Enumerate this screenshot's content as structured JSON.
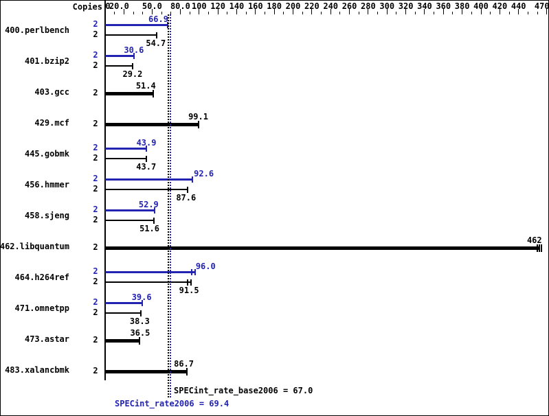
{
  "chart_data": {
    "type": "bar",
    "orientation": "horizontal",
    "title": "",
    "copies_header": "Copies",
    "colors": {
      "peak": "#2323b2",
      "base": "#000000",
      "background": "#ffffff"
    },
    "axis": {
      "min": 0,
      "max": 470,
      "minor_tick_step": 10,
      "major_tick_labels": [
        {
          "value": 0,
          "text": "0",
          "dx": 4
        },
        {
          "value": 20,
          "text": "20.0",
          "dx": -7
        },
        {
          "value": 50,
          "text": "50.0"
        },
        {
          "value": 80,
          "text": "80.0"
        },
        {
          "value": 100,
          "text": "100"
        },
        {
          "value": 120,
          "text": "120"
        },
        {
          "value": 140,
          "text": "140"
        },
        {
          "value": 160,
          "text": "160"
        },
        {
          "value": 180,
          "text": "180"
        },
        {
          "value": 200,
          "text": "200"
        },
        {
          "value": 220,
          "text": "220"
        },
        {
          "value": 240,
          "text": "240"
        },
        {
          "value": 260,
          "text": "260"
        },
        {
          "value": 280,
          "text": "280"
        },
        {
          "value": 300,
          "text": "300"
        },
        {
          "value": 320,
          "text": "320"
        },
        {
          "value": 340,
          "text": "340"
        },
        {
          "value": 360,
          "text": "360"
        },
        {
          "value": 380,
          "text": "380"
        },
        {
          "value": 400,
          "text": "400"
        },
        {
          "value": 420,
          "text": "420"
        },
        {
          "value": 440,
          "text": "440"
        },
        {
          "value": 470,
          "text": "470",
          "dx": -7
        }
      ]
    },
    "benchmarks": [
      {
        "name": "400.perlbench",
        "bars": [
          {
            "kind": "peak",
            "copies": "2",
            "value": 66.9,
            "label": "66.9",
            "label_dx": -14
          },
          {
            "kind": "base",
            "copies": "2",
            "value": 54.7,
            "label": "54.7",
            "label_dx": -1
          }
        ]
      },
      {
        "name": "401.bzip2",
        "bars": [
          {
            "kind": "peak",
            "copies": "2",
            "value": 30.6,
            "label": "30.6"
          },
          {
            "kind": "base",
            "copies": "2",
            "value": 29.2,
            "label": "29.2"
          }
        ]
      },
      {
        "name": "403.gcc",
        "bars": [
          {
            "kind": "single",
            "copies": "2",
            "value": 51.4,
            "label": "51.4",
            "label_dx": -11
          }
        ]
      },
      {
        "name": "429.mcf",
        "bars": [
          {
            "kind": "single",
            "copies": "2",
            "value": 99.1,
            "label": "99.1"
          }
        ]
      },
      {
        "name": "445.gobmk",
        "bars": [
          {
            "kind": "peak",
            "copies": "2",
            "value": 43.9,
            "label": "43.9"
          },
          {
            "kind": "base",
            "copies": "2",
            "value": 43.7,
            "label": "43.7"
          }
        ]
      },
      {
        "name": "456.hmmer",
        "bars": [
          {
            "kind": "peak",
            "copies": "2",
            "value": 92.6,
            "label": "92.6",
            "label_dx": 17
          },
          {
            "kind": "base",
            "copies": "2",
            "value": 87.6,
            "label": "87.6",
            "label_dx": -2
          }
        ]
      },
      {
        "name": "458.sjeng",
        "bars": [
          {
            "kind": "peak",
            "copies": "2",
            "value": 52.9,
            "label": "52.9",
            "label_dx": -9
          },
          {
            "kind": "base",
            "copies": "2",
            "value": 51.6,
            "label": "51.6",
            "label_dx": -6
          }
        ]
      },
      {
        "name": "462.libquantum",
        "bars": [
          {
            "kind": "single",
            "copies": "2",
            "value": 462,
            "label": "462",
            "label_dx": -7,
            "serif_offsets": [
              -3,
              0,
              3
            ]
          }
        ]
      },
      {
        "name": "464.h264ref",
        "bars": [
          {
            "kind": "peak",
            "copies": "2",
            "value": 96.0,
            "label": "96.0",
            "label_dx": 15,
            "serif_offsets": [
              -5,
              0
            ]
          },
          {
            "kind": "base",
            "copies": "2",
            "value": 91.5,
            "label": "91.5",
            "label_dx": -3,
            "serif_offsets": [
              -5,
              0
            ]
          }
        ]
      },
      {
        "name": "471.omnetpp",
        "bars": [
          {
            "kind": "peak",
            "copies": "2",
            "value": 39.6,
            "label": "39.6",
            "label_dx": -1
          },
          {
            "kind": "base",
            "copies": "2",
            "value": 38.3,
            "label": "38.3",
            "label_dx": -2
          }
        ]
      },
      {
        "name": "473.astar",
        "bars": [
          {
            "kind": "single",
            "copies": "2",
            "value": 36.5,
            "label": "36.5",
            "label_dx": 1
          }
        ]
      },
      {
        "name": "483.xalancbmk",
        "bars": [
          {
            "kind": "single",
            "copies": "2",
            "value": 86.7,
            "label": "86.7",
            "label_dx": -4
          }
        ]
      }
    ],
    "series": [
      {
        "name": "peak",
        "values": [
          66.9,
          30.6,
          null,
          null,
          43.9,
          92.6,
          52.9,
          null,
          96.0,
          39.6,
          null,
          null
        ]
      },
      {
        "name": "base",
        "values": [
          54.7,
          29.2,
          51.4,
          99.1,
          43.7,
          87.6,
          51.6,
          462,
          91.5,
          38.3,
          36.5,
          86.7
        ]
      }
    ],
    "reference_lines": [
      {
        "name": "base",
        "label": "SPECint_rate_base2006 = 67.0",
        "value": 67.0,
        "color": "#000000"
      },
      {
        "name": "peak",
        "label": "SPECint_rate2006 = 69.4",
        "value": 69.4,
        "color": "#2323b2"
      }
    ]
  }
}
